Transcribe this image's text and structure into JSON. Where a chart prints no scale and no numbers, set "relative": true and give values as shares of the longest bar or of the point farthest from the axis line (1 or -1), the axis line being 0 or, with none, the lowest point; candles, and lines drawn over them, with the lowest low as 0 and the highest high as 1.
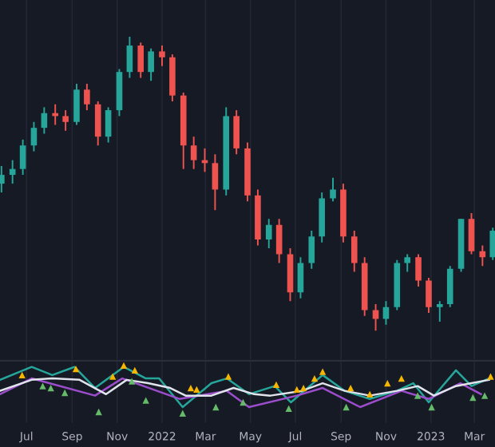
{
  "chart_data": [
    {
      "type": "candlestick",
      "relative": true,
      "grid": "x",
      "tick_labels": false,
      "x": [
        "2021-05-28",
        "2021-06-12",
        "2021-06-26",
        "2021-07-11",
        "2021-07-25",
        "2021-08-09",
        "2021-08-23",
        "2021-09-07",
        "2021-09-21",
        "2021-10-06",
        "2021-10-20",
        "2021-11-04",
        "2021-11-18",
        "2021-12-03",
        "2021-12-17",
        "2022-01-01",
        "2022-01-15",
        "2022-01-30",
        "2022-02-13",
        "2022-02-28",
        "2022-03-14",
        "2022-03-29",
        "2022-04-12",
        "2022-04-27",
        "2022-05-11",
        "2022-05-26",
        "2022-06-09",
        "2022-06-24",
        "2022-07-08",
        "2022-07-23",
        "2022-08-06",
        "2022-08-21",
        "2022-09-04",
        "2022-09-19",
        "2022-10-03",
        "2022-10-18",
        "2022-11-01",
        "2022-11-16",
        "2022-11-30",
        "2022-12-15",
        "2022-12-29",
        "2023-01-13",
        "2023-01-27",
        "2023-02-11",
        "2023-02-25",
        "2023-03-12",
        "2023-03-26"
      ],
      "ohlc": [
        [
          0.5,
          0.56,
          0.47,
          0.53
        ],
        [
          0.53,
          0.58,
          0.5,
          0.55
        ],
        [
          0.55,
          0.65,
          0.53,
          0.63
        ],
        [
          0.63,
          0.71,
          0.61,
          0.69
        ],
        [
          0.69,
          0.76,
          0.67,
          0.74
        ],
        [
          0.74,
          0.77,
          0.7,
          0.73
        ],
        [
          0.73,
          0.75,
          0.68,
          0.71
        ],
        [
          0.71,
          0.84,
          0.7,
          0.82
        ],
        [
          0.82,
          0.84,
          0.75,
          0.77
        ],
        [
          0.77,
          0.78,
          0.63,
          0.66
        ],
        [
          0.66,
          0.76,
          0.64,
          0.75
        ],
        [
          0.75,
          0.89,
          0.73,
          0.88
        ],
        [
          0.88,
          1.0,
          0.86,
          0.97
        ],
        [
          0.97,
          0.98,
          0.86,
          0.88
        ],
        [
          0.88,
          0.96,
          0.85,
          0.95
        ],
        [
          0.95,
          0.97,
          0.9,
          0.93
        ],
        [
          0.93,
          0.94,
          0.78,
          0.8
        ],
        [
          0.8,
          0.81,
          0.55,
          0.63
        ],
        [
          0.63,
          0.66,
          0.55,
          0.58
        ],
        [
          0.58,
          0.62,
          0.54,
          0.57
        ],
        [
          0.57,
          0.6,
          0.41,
          0.48
        ],
        [
          0.48,
          0.76,
          0.46,
          0.73
        ],
        [
          0.73,
          0.75,
          0.6,
          0.62
        ],
        [
          0.62,
          0.64,
          0.44,
          0.46
        ],
        [
          0.46,
          0.48,
          0.29,
          0.31
        ],
        [
          0.31,
          0.38,
          0.28,
          0.36
        ],
        [
          0.36,
          0.38,
          0.23,
          0.26
        ],
        [
          0.26,
          0.28,
          0.1,
          0.13
        ],
        [
          0.13,
          0.25,
          0.11,
          0.23
        ],
        [
          0.23,
          0.34,
          0.21,
          0.32
        ],
        [
          0.32,
          0.47,
          0.3,
          0.45
        ],
        [
          0.45,
          0.52,
          0.44,
          0.48
        ],
        [
          0.48,
          0.5,
          0.3,
          0.32
        ],
        [
          0.32,
          0.34,
          0.2,
          0.23
        ],
        [
          0.23,
          0.25,
          0.05,
          0.07
        ],
        [
          0.07,
          0.09,
          0.0,
          0.04
        ],
        [
          0.04,
          0.1,
          0.02,
          0.08
        ],
        [
          0.08,
          0.24,
          0.07,
          0.23
        ],
        [
          0.23,
          0.26,
          0.2,
          0.25
        ],
        [
          0.25,
          0.26,
          0.15,
          0.17
        ],
        [
          0.17,
          0.18,
          0.06,
          0.08
        ],
        [
          0.08,
          0.1,
          0.03,
          0.09
        ],
        [
          0.09,
          0.22,
          0.08,
          0.21
        ],
        [
          0.21,
          0.38,
          0.2,
          0.38
        ],
        [
          0.38,
          0.4,
          0.26,
          0.27
        ],
        [
          0.27,
          0.29,
          0.22,
          0.25
        ],
        [
          0.25,
          0.35,
          0.24,
          0.34
        ]
      ],
      "colors": [
        "#26a69a",
        "#26a69a",
        "#26a69a",
        "#26a69a",
        "#26a69a",
        "#ef5350",
        "#ef5350",
        "#26a69a",
        "#ef5350",
        "#ef5350",
        "#26a69a",
        "#26a69a",
        "#26a69a",
        "#ef5350",
        "#26a69a",
        "#ef5350",
        "#ef5350",
        "#ef5350",
        "#ef5350",
        "#ef5350",
        "#ef5350",
        "#26a69a",
        "#ef5350",
        "#ef5350",
        "#ef5350",
        "#26a69a",
        "#ef5350",
        "#ef5350",
        "#26a69a",
        "#26a69a",
        "#26a69a",
        "#26a69a",
        "#ef5350",
        "#ef5350",
        "#ef5350",
        "#ef5350",
        "#26a69a",
        "#26a69a",
        "#26a69a",
        "#ef5350",
        "#ef5350",
        "#26a69a",
        "#26a69a",
        "#26a69a",
        "#ef5350",
        "#ef5350",
        "#26a69a"
      ],
      "xlim": [
        "2021-05-26",
        "2023-03-29"
      ]
    },
    {
      "type": "line",
      "relative": true,
      "grid": "x",
      "tick_labels": "x",
      "xlim": [
        "2021-05-26",
        "2023-03-29"
      ],
      "xticks": [
        {
          "value": "2021-07-01",
          "label": "Jul"
        },
        {
          "value": "2021-09-01",
          "label": "Sep"
        },
        {
          "value": "2021-11-01",
          "label": "Nov"
        },
        {
          "value": "2022-01-01",
          "label": "2022"
        },
        {
          "value": "2022-03-01",
          "label": "Mar"
        },
        {
          "value": "2022-05-01",
          "label": "May"
        },
        {
          "value": "2022-07-01",
          "label": "Jul"
        },
        {
          "value": "2022-09-01",
          "label": "Sep"
        },
        {
          "value": "2022-11-01",
          "label": "Nov"
        },
        {
          "value": "2023-01-01",
          "label": "2023"
        },
        {
          "value": "2023-03-01",
          "label": "Mar"
        }
      ],
      "series": [
        {
          "color": "#26a69a",
          "x": [
            "2021-05-26",
            "2021-07-08",
            "2021-08-05",
            "2021-09-04",
            "2021-10-02",
            "2021-11-10",
            "2021-12-10",
            "2021-12-28",
            "2022-01-29",
            "2022-03-09",
            "2022-03-30",
            "2022-04-29",
            "2022-06-03",
            "2022-06-25",
            "2022-08-07",
            "2022-09-06",
            "2022-10-10",
            "2022-11-16",
            "2022-12-08",
            "2022-12-29",
            "2023-02-04",
            "2023-02-25",
            "2023-03-21"
          ],
          "values": [
            0.7,
            0.97,
            0.8,
            0.97,
            0.53,
            0.97,
            0.73,
            0.73,
            0.13,
            0.63,
            0.73,
            0.4,
            0.57,
            0.23,
            0.8,
            0.47,
            0.3,
            0.47,
            0.63,
            0.23,
            0.9,
            0.57,
            0.73
          ]
        },
        {
          "color": "#9c4dcc",
          "x": [
            "2021-05-26",
            "2021-07-08",
            "2021-10-02",
            "2021-11-08",
            "2022-01-25",
            "2022-03-30",
            "2022-04-29",
            "2022-07-03",
            "2022-08-07",
            "2022-09-27",
            "2022-11-22",
            "2022-12-29",
            "2023-02-10",
            "2023-03-10"
          ],
          "values": [
            0.4,
            0.73,
            0.37,
            0.73,
            0.3,
            0.47,
            0.13,
            0.37,
            0.53,
            0.13,
            0.47,
            0.3,
            0.63,
            0.4
          ]
        },
        {
          "color": "#e0e3eb",
          "x": [
            "2021-05-26",
            "2021-07-08",
            "2021-08-05",
            "2021-09-11",
            "2021-10-17",
            "2021-11-14",
            "2021-12-13",
            "2022-01-12",
            "2022-02-02",
            "2022-03-09",
            "2022-04-08",
            "2022-05-06",
            "2022-05-28",
            "2022-07-10",
            "2022-08-07",
            "2022-09-06",
            "2022-10-10",
            "2022-11-16",
            "2022-12-14",
            "2023-01-05",
            "2023-02-04",
            "2023-02-25",
            "2023-03-21"
          ],
          "values": [
            0.47,
            0.7,
            0.73,
            0.7,
            0.4,
            0.7,
            0.63,
            0.53,
            0.37,
            0.37,
            0.53,
            0.4,
            0.37,
            0.47,
            0.63,
            0.47,
            0.37,
            0.47,
            0.57,
            0.37,
            0.57,
            0.63,
            0.7
          ]
        },
        {
          "type": "scatter",
          "marker": "triangle",
          "color": "#f7b500",
          "x": [
            "2021-06-25",
            "2021-09-06",
            "2021-10-26",
            "2021-11-10",
            "2021-11-25",
            "2022-02-09",
            "2022-02-17",
            "2022-04-01",
            "2022-06-05",
            "2022-07-03",
            "2022-07-12",
            "2022-07-27",
            "2022-08-07",
            "2022-09-14",
            "2022-10-10",
            "2022-11-03",
            "2022-11-22",
            "2023-03-23"
          ],
          "values": [
            0.8,
            0.93,
            0.77,
            1.0,
            0.9,
            0.53,
            0.5,
            0.77,
            0.6,
            0.5,
            0.53,
            0.73,
            0.87,
            0.53,
            0.4,
            0.63,
            0.73,
            0.77
          ]
        },
        {
          "type": "scatter",
          "marker": "triangle",
          "color": "#66bb6a",
          "x": [
            "2021-07-23",
            "2021-08-03",
            "2021-08-22",
            "2021-10-07",
            "2021-11-21",
            "2021-12-10",
            "2022-01-29",
            "2022-03-15",
            "2022-04-21",
            "2022-06-22",
            "2022-09-08",
            "2022-12-14",
            "2023-01-02",
            "2023-02-27",
            "2023-03-15"
          ],
          "values": [
            0.57,
            0.53,
            0.43,
            0.03,
            0.67,
            0.27,
            0.0,
            0.13,
            0.23,
            0.1,
            0.13,
            0.37,
            0.13,
            0.33,
            0.37
          ]
        }
      ]
    }
  ]
}
